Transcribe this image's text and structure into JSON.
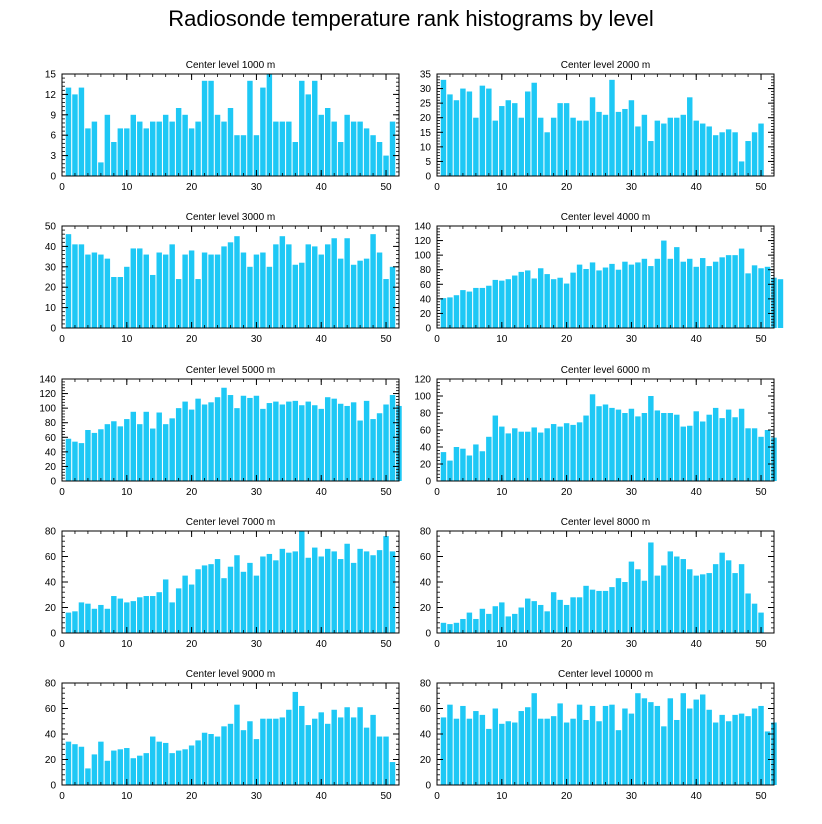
{
  "title": "Radiosonde temperature rank histograms by level",
  "colors": {
    "bar": "#1ec8f5",
    "axis": "#000000"
  },
  "chart_data": [
    {
      "type": "bar",
      "title": "Center level 1000 m",
      "xlim": [
        0,
        52
      ],
      "ylim": [
        0,
        15
      ],
      "xticks": [
        0,
        10,
        20,
        30,
        40,
        50
      ],
      "yticks": [
        0,
        3,
        6,
        9,
        12,
        15
      ],
      "values": [
        13,
        12,
        13,
        7,
        8,
        2,
        9,
        5,
        7,
        7,
        9,
        8,
        7,
        8,
        8,
        9,
        8,
        10,
        9,
        7,
        8,
        14,
        14,
        9,
        8,
        10,
        6,
        6,
        14,
        6,
        13,
        15,
        8,
        8,
        8,
        5,
        14,
        12,
        14,
        9,
        10,
        8,
        5,
        9,
        8,
        8,
        7,
        6,
        5,
        3,
        8
      ]
    },
    {
      "type": "bar",
      "title": "Center level 2000 m",
      "xlim": [
        0,
        52
      ],
      "ylim": [
        0,
        35
      ],
      "xticks": [
        0,
        10,
        20,
        30,
        40,
        50
      ],
      "yticks": [
        0,
        5,
        10,
        15,
        20,
        25,
        30,
        35
      ],
      "values": [
        33,
        28,
        26,
        30,
        29,
        20,
        31,
        30,
        19,
        24,
        26,
        25,
        20,
        29,
        32,
        20,
        15,
        20,
        25,
        25,
        20,
        19,
        19,
        27,
        22,
        21,
        33,
        22,
        23,
        26,
        17,
        21,
        12,
        19,
        18,
        20,
        20,
        21,
        27,
        19,
        18,
        17,
        14,
        15,
        16,
        15,
        5,
        12,
        15,
        18
      ]
    },
    {
      "type": "bar",
      "title": "Center level 3000 m",
      "xlim": [
        0,
        52
      ],
      "ylim": [
        0,
        50
      ],
      "xticks": [
        0,
        10,
        20,
        30,
        40,
        50
      ],
      "yticks": [
        0,
        10,
        20,
        30,
        40,
        50
      ],
      "values": [
        46,
        41,
        41,
        36,
        37,
        36,
        34,
        25,
        25,
        30,
        39,
        39,
        36,
        26,
        37,
        36,
        41,
        24,
        36,
        38,
        24,
        37,
        36,
        36,
        40,
        42,
        45,
        37,
        30,
        36,
        37,
        30,
        41,
        45,
        41,
        31,
        32,
        41,
        40,
        36,
        41,
        44,
        34,
        44,
        31,
        33,
        34,
        46,
        37,
        24,
        30
      ]
    },
    {
      "type": "bar",
      "title": "Center level 4000 m",
      "xlim": [
        0,
        52
      ],
      "ylim": [
        0,
        140
      ],
      "xticks": [
        0,
        10,
        20,
        30,
        40,
        50
      ],
      "yticks": [
        0,
        20,
        40,
        60,
        80,
        100,
        120,
        140
      ],
      "values": [
        41,
        42,
        45,
        52,
        50,
        55,
        55,
        58,
        66,
        65,
        67,
        72,
        77,
        79,
        68,
        82,
        74,
        67,
        69,
        61,
        76,
        87,
        81,
        90,
        79,
        83,
        88,
        80,
        91,
        87,
        90,
        95,
        85,
        95,
        120,
        95,
        111,
        91,
        95,
        84,
        96,
        85,
        91,
        97,
        100,
        100,
        109,
        75,
        86,
        82,
        84,
        69,
        67
      ]
    },
    {
      "type": "bar",
      "title": "Center level 5000 m",
      "xlim": [
        0,
        52
      ],
      "ylim": [
        0,
        140
      ],
      "xticks": [
        0,
        10,
        20,
        30,
        40,
        50
      ],
      "yticks": [
        0,
        20,
        40,
        60,
        80,
        100,
        120,
        140
      ],
      "values": [
        58,
        54,
        52,
        70,
        66,
        71,
        78,
        82,
        75,
        85,
        95,
        78,
        95,
        72,
        94,
        78,
        86,
        100,
        109,
        98,
        113,
        105,
        108,
        115,
        128,
        118,
        100,
        117,
        114,
        117,
        99,
        107,
        109,
        105,
        109,
        110,
        104,
        109,
        104,
        99,
        115,
        113,
        106,
        103,
        108,
        83,
        110,
        85,
        93,
        105,
        118,
        103
      ]
    },
    {
      "type": "bar",
      "title": "Center level 6000 m",
      "xlim": [
        0,
        52
      ],
      "ylim": [
        0,
        120
      ],
      "xticks": [
        0,
        10,
        20,
        30,
        40,
        50
      ],
      "yticks": [
        0,
        20,
        40,
        60,
        80,
        100,
        120
      ],
      "values": [
        34,
        24,
        40,
        38,
        30,
        43,
        35,
        52,
        77,
        64,
        56,
        62,
        58,
        58,
        63,
        57,
        62,
        67,
        64,
        68,
        66,
        69,
        77,
        102,
        88,
        90,
        86,
        84,
        80,
        85,
        76,
        80,
        100,
        83,
        80,
        80,
        78,
        64,
        65,
        82,
        70,
        78,
        86,
        74,
        84,
        75,
        85,
        62,
        62,
        52,
        60,
        51
      ]
    },
    {
      "type": "bar",
      "title": "Center level 7000 m",
      "xlim": [
        0,
        52
      ],
      "ylim": [
        0,
        80
      ],
      "xticks": [
        0,
        10,
        20,
        30,
        40,
        50
      ],
      "yticks": [
        0,
        20,
        40,
        60,
        80
      ],
      "values": [
        16,
        17,
        24,
        23,
        19,
        22,
        19,
        29,
        27,
        24,
        25,
        28,
        29,
        29,
        32,
        42,
        24,
        35,
        45,
        38,
        50,
        53,
        54,
        58,
        43,
        52,
        61,
        48,
        55,
        45,
        60,
        62,
        57,
        66,
        63,
        64,
        80,
        59,
        67,
        60,
        66,
        64,
        58,
        70,
        55,
        66,
        64,
        61,
        65,
        76,
        64
      ]
    },
    {
      "type": "bar",
      "title": "Center level 8000 m",
      "xlim": [
        0,
        52
      ],
      "ylim": [
        0,
        80
      ],
      "xticks": [
        0,
        10,
        20,
        30,
        40,
        50
      ],
      "yticks": [
        0,
        20,
        40,
        60,
        80
      ],
      "values": [
        8,
        7,
        8,
        11,
        16,
        11,
        19,
        15,
        21,
        24,
        13,
        15,
        20,
        27,
        25,
        22,
        17,
        32,
        26,
        22,
        28,
        28,
        37,
        34,
        33,
        33,
        36,
        43,
        40,
        56,
        50,
        41,
        71,
        45,
        53,
        64,
        60,
        58,
        50,
        45,
        46,
        47,
        54,
        63,
        57,
        47,
        54,
        31,
        23,
        16
      ]
    },
    {
      "type": "bar",
      "title": "Center level 9000 m",
      "xlim": [
        0,
        52
      ],
      "ylim": [
        0,
        80
      ],
      "xticks": [
        0,
        10,
        20,
        30,
        40,
        50
      ],
      "yticks": [
        0,
        20,
        40,
        60,
        80
      ],
      "values": [
        34,
        32,
        30,
        13,
        24,
        34,
        19,
        27,
        28,
        29,
        21,
        23,
        25,
        38,
        34,
        33,
        25,
        27,
        28,
        31,
        35,
        41,
        40,
        38,
        46,
        48,
        63,
        43,
        50,
        36,
        52,
        52,
        52,
        53,
        59,
        73,
        62,
        47,
        52,
        57,
        48,
        59,
        53,
        61,
        53,
        61,
        45,
        55,
        38,
        38,
        18
      ]
    },
    {
      "type": "bar",
      "title": "Center level 10000 m",
      "xlim": [
        0,
        52
      ],
      "ylim": [
        0,
        80
      ],
      "xticks": [
        0,
        10,
        20,
        30,
        40,
        50
      ],
      "yticks": [
        0,
        20,
        40,
        60,
        80
      ],
      "values": [
        53,
        63,
        52,
        62,
        52,
        58,
        55,
        44,
        60,
        48,
        50,
        49,
        58,
        61,
        72,
        52,
        52,
        54,
        64,
        49,
        52,
        63,
        51,
        62,
        50,
        62,
        63,
        43,
        60,
        56,
        72,
        68,
        65,
        62,
        46,
        68,
        51,
        72,
        60,
        67,
        71,
        59,
        49,
        55,
        50,
        55,
        56,
        54,
        60,
        62,
        42,
        49
      ]
    }
  ]
}
